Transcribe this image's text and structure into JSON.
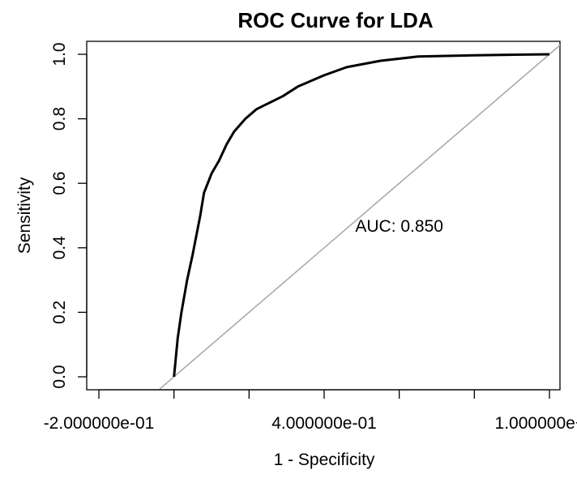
{
  "chart_data": {
    "type": "line",
    "title": "ROC Curve for LDA",
    "xlabel": "1 - Specificity",
    "ylabel": "Sensitivity",
    "xlim": [
      -0.2,
      1.0
    ],
    "ylim": [
      0.0,
      1.0
    ],
    "x_ticks": [
      -0.2,
      0.0,
      0.2,
      0.4,
      0.6,
      0.8,
      1.0
    ],
    "x_tick_labels": [
      "-2.000000e-01",
      "",
      "4.000000e-01",
      "",
      "1.000000e+00"
    ],
    "x_tick_label_values": [
      -0.2,
      0.2,
      0.4,
      0.6,
      1.0
    ],
    "y_ticks": [
      0.0,
      0.2,
      0.4,
      0.6,
      0.8,
      1.0
    ],
    "y_tick_labels": [
      "0.0",
      "0.2",
      "0.4",
      "0.6",
      "0.8",
      "1.0"
    ],
    "series": [
      {
        "points": [
          [
            0.0,
            0.0
          ],
          [
            0.01,
            0.12
          ],
          [
            0.02,
            0.2
          ],
          [
            0.035,
            0.3
          ],
          [
            0.05,
            0.38
          ],
          [
            0.07,
            0.5
          ],
          [
            0.08,
            0.57
          ],
          [
            0.1,
            0.63
          ],
          [
            0.12,
            0.67
          ],
          [
            0.14,
            0.72
          ],
          [
            0.16,
            0.76
          ],
          [
            0.19,
            0.8
          ],
          [
            0.22,
            0.83
          ],
          [
            0.29,
            0.87
          ],
          [
            0.33,
            0.9
          ],
          [
            0.4,
            0.935
          ],
          [
            0.46,
            0.96
          ],
          [
            0.55,
            0.98
          ],
          [
            0.65,
            0.993
          ],
          [
            0.8,
            0.997
          ],
          [
            1.0,
            1.0
          ]
        ]
      }
    ],
    "reference_line": {
      "from": [
        -0.04,
        -0.04
      ],
      "to": [
        1.04,
        1.04
      ]
    },
    "annotations": [
      {
        "text": "AUC: 0.850",
        "x": 0.6,
        "y": 0.47
      }
    ],
    "grid": false,
    "colors": {
      "curve": "#000000",
      "diagonal": "#aaaaaa",
      "frame": "#000000"
    }
  }
}
